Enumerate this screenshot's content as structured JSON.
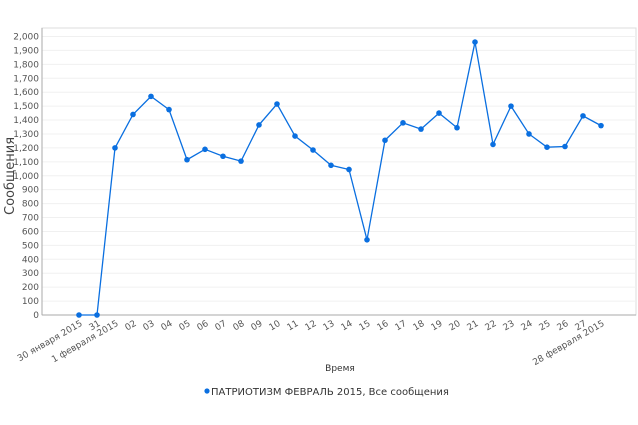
{
  "chart_data": {
    "type": "line",
    "title": "",
    "xlabel": "Время",
    "ylabel": "Сообщения",
    "ylim": [
      0,
      2000
    ],
    "ytick_step": 100,
    "grid": true,
    "legend_position": "bottom",
    "categories": [
      "30 января 2015",
      "31",
      "1 февраля 2015",
      "02",
      "03",
      "04",
      "05",
      "06",
      "07",
      "08",
      "09",
      "10",
      "11",
      "12",
      "13",
      "14",
      "15",
      "16",
      "17",
      "18",
      "19",
      "20",
      "21",
      "22",
      "23",
      "24",
      "25",
      "26",
      "27",
      "28 февраля 2015"
    ],
    "series": [
      {
        "name": "ПАТРИОТИЗМ ФЕВРАЛЬ 2015, Все сообщения",
        "color": "#0a6fe0",
        "values": [
          0,
          0,
          1200,
          1440,
          1570,
          1475,
          1115,
          1190,
          1140,
          1105,
          1365,
          1515,
          1285,
          1185,
          1075,
          1045,
          540,
          1255,
          1380,
          1335,
          1450,
          1345,
          1960,
          1225,
          1500,
          1300,
          1205,
          1210,
          1430,
          1360
        ]
      }
    ]
  }
}
